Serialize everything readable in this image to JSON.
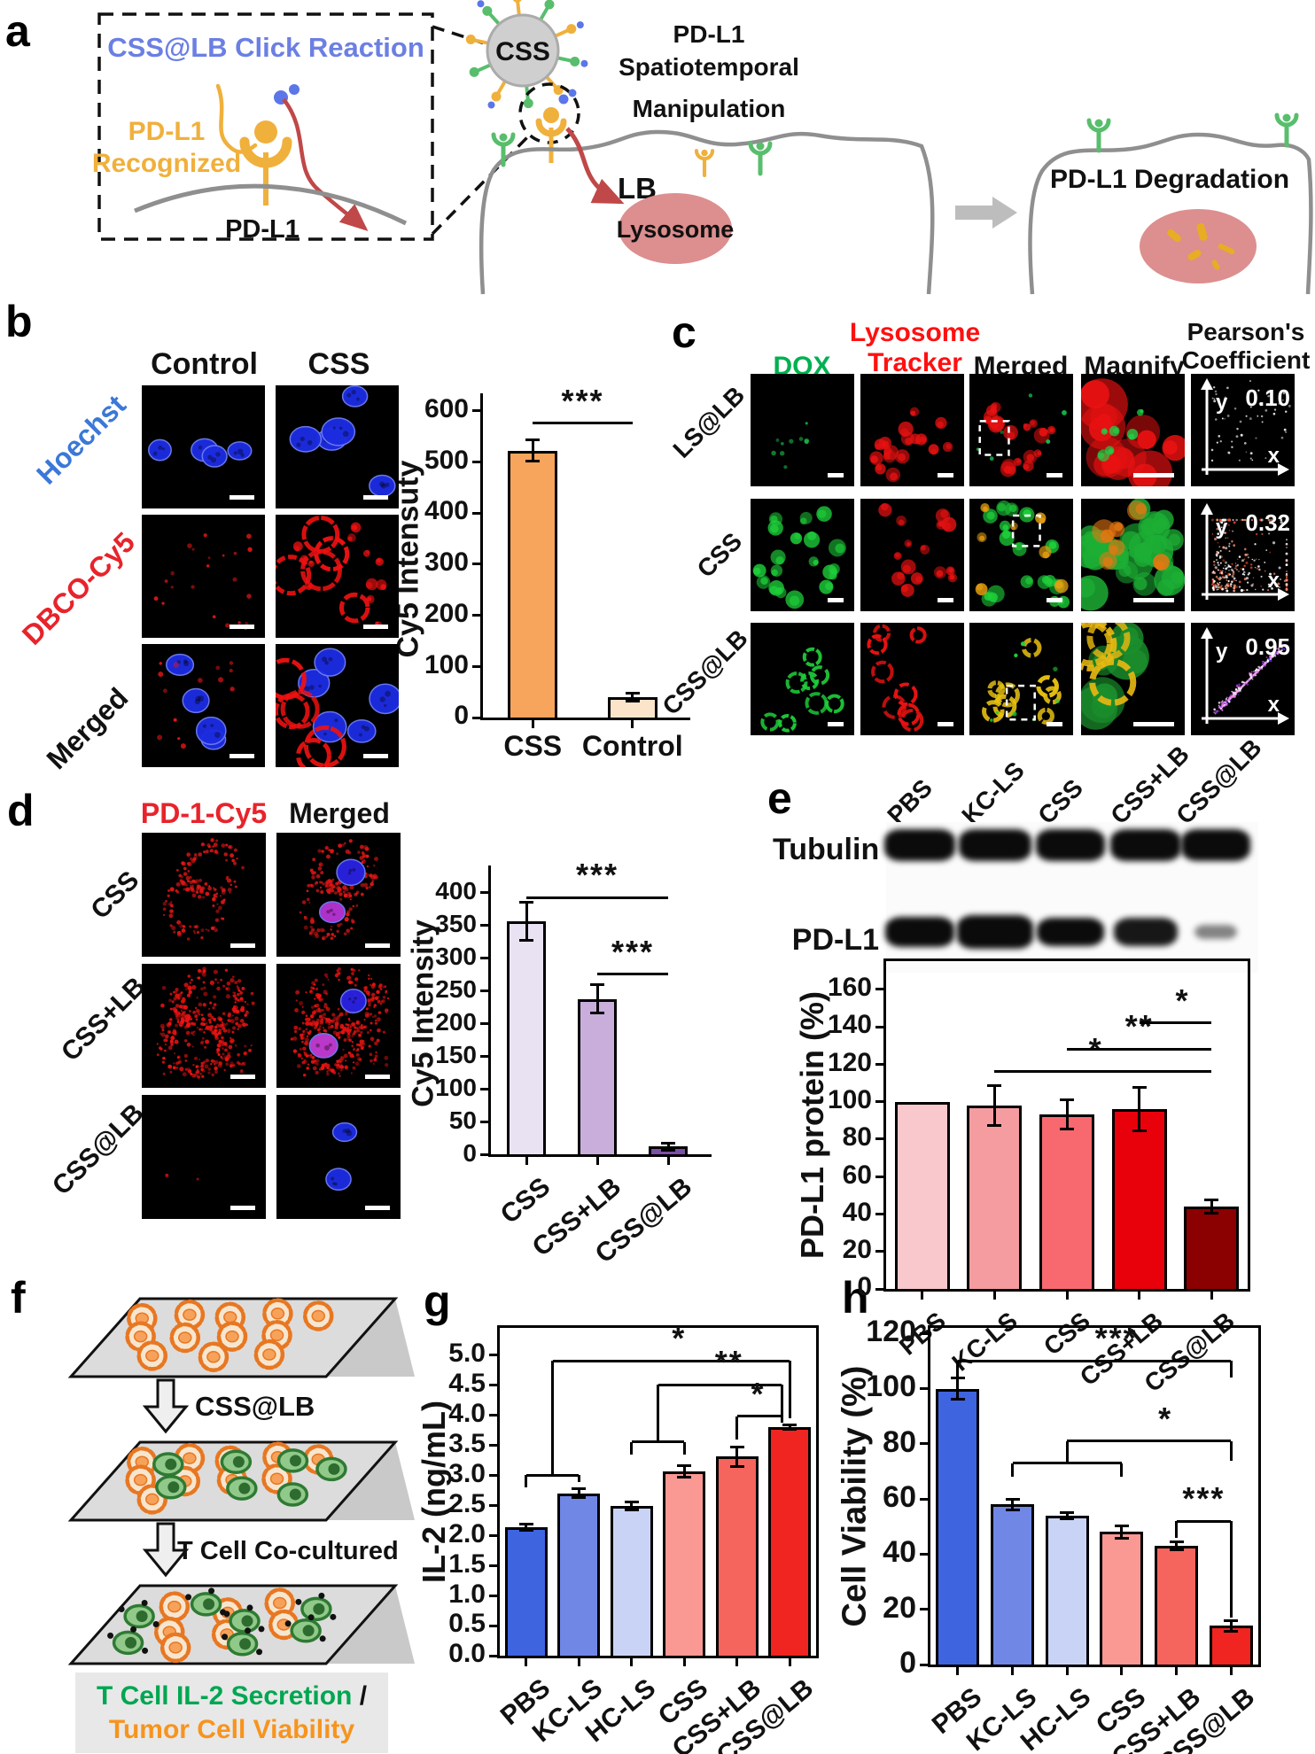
{
  "figure": {
    "panel_a": {
      "label": "a",
      "click_reaction": "CSS@LB Click Reaction",
      "recognized_line1": "PD-L1",
      "recognized_line2": "Recognized",
      "membrane_protein": "PD-L1",
      "nanoparticle": "CSS",
      "manip_line1": "PD-L1",
      "manip_line2": "Spatiotemporal",
      "manip_line3": "Manipulation",
      "lb": "LB",
      "lysosome": "Lysosome",
      "degradation": "PD-L1 Degradation"
    },
    "panel_b": {
      "label": "b",
      "columns": [
        "Control",
        "CSS"
      ],
      "rows": [
        "Hoechst",
        "DBCO-Cy5",
        "Merged"
      ]
    },
    "panel_c": {
      "label": "c",
      "col_dox": "DOX",
      "col_lyso_1": "Lysosome",
      "col_lyso_2": "Tracker",
      "col_merged": "Merged",
      "col_magnify": "Magnify",
      "col_pearson_1": "Pearson's",
      "col_pearson_2": "Coefficient",
      "rows": [
        "LS@LB",
        "CSS",
        "CSS@LB"
      ],
      "pearson_values": [
        "0.10",
        "0.32",
        "0.95"
      ],
      "axis_x": "x",
      "axis_y": "y"
    },
    "panel_d": {
      "label": "d",
      "columns": [
        "PD-1-Cy5",
        "Merged"
      ],
      "rows": [
        "CSS",
        "CSS+LB",
        "CSS@LB"
      ]
    },
    "panel_e": {
      "label": "e",
      "blot_rows": [
        "Tubulin",
        "PD-L1"
      ],
      "lanes": [
        "PBS",
        "KC-LS",
        "CSS",
        "CSS+LB",
        "CSS@LB"
      ]
    },
    "panel_f": {
      "label": "f",
      "step1_label": "CSS@LB",
      "step2_label": "T Cell Co-cultured",
      "caption_green": "T Cell IL-2 Secretion",
      "caption_sep": " /",
      "caption_orange": "Tumor Cell Viability"
    },
    "panel_g": {
      "label": "g"
    },
    "panel_h": {
      "label": "h"
    }
  },
  "chart_data": [
    {
      "id": "chart-b",
      "type": "bar",
      "title": "",
      "xlabel": "",
      "ylabel": "Cy5 Intensuty",
      "categories": [
        "CSS",
        "Control"
      ],
      "values": [
        522,
        40
      ],
      "errors": [
        22,
        8
      ],
      "colors": [
        "#F7A55C",
        "#FBE4C9"
      ],
      "ylim": [
        0,
        620
      ],
      "yticks": [
        0,
        100,
        200,
        300,
        400,
        500,
        600
      ],
      "ytick_labels": [
        "0",
        "100",
        "200",
        "300",
        "400",
        "500",
        "600"
      ],
      "significance": [
        {
          "t": "h",
          "x1": 0,
          "x2": 1,
          "y": 575
        },
        {
          "t": "txt",
          "x": 0.5,
          "y": 575,
          "s": "***"
        }
      ]
    },
    {
      "id": "chart-d",
      "type": "bar",
      "title": "",
      "xlabel": "",
      "ylabel": "Cy5 Intensity",
      "categories": [
        "CSS",
        "CSS+LB",
        "CSS@LB"
      ],
      "values": [
        356,
        237,
        12
      ],
      "errors": [
        30,
        22,
        6
      ],
      "colors": [
        "#E9E2F3",
        "#C9AEDC",
        "#7B50A5"
      ],
      "ylim": [
        0,
        430
      ],
      "yticks": [
        0,
        50,
        100,
        150,
        200,
        250,
        300,
        350,
        400
      ],
      "ytick_labels": [
        "0",
        "50",
        "100",
        "150",
        "200",
        "250",
        "300",
        "350",
        "400"
      ],
      "significance": [
        {
          "t": "h",
          "x1": 0,
          "x2": 2,
          "y": 392
        },
        {
          "t": "txt",
          "x": 1,
          "y": 392,
          "s": "***"
        },
        {
          "t": "h",
          "x1": 1,
          "x2": 2,
          "y": 275
        },
        {
          "t": "txt",
          "x": 1.5,
          "y": 275,
          "s": "***"
        }
      ]
    },
    {
      "id": "chart-e",
      "type": "bar",
      "title": "",
      "xlabel": "",
      "ylabel": "PD-L1 protein (%)",
      "categories": [
        "PBS",
        "KC-LS",
        "CSS",
        "CSS+LB",
        "CSS@LB"
      ],
      "values": [
        100,
        98,
        93,
        96,
        44
      ],
      "errors": [
        0,
        11,
        8,
        12,
        4
      ],
      "colors": [
        "#F8C8CC",
        "#F59CA1",
        "#F8696F",
        "#E8000B",
        "#8B0000"
      ],
      "ylim": [
        0,
        175
      ],
      "yticks": [
        0,
        20,
        40,
        60,
        80,
        100,
        120,
        140,
        160
      ],
      "ytick_labels": [
        "0",
        "20",
        "40",
        "60",
        "80",
        "100",
        "120",
        "140",
        "160"
      ],
      "significance": [
        {
          "t": "h",
          "x1": 1,
          "x2": 4,
          "y": 116
        },
        {
          "t": "txt",
          "x": 2.4,
          "y": 116,
          "s": "*"
        },
        {
          "t": "h",
          "x1": 2,
          "x2": 4,
          "y": 128
        },
        {
          "t": "txt",
          "x": 3.0,
          "y": 128,
          "s": "**"
        },
        {
          "t": "h",
          "x1": 3,
          "x2": 4,
          "y": 142
        },
        {
          "t": "txt",
          "x": 3.6,
          "y": 142,
          "s": "*"
        }
      ]
    },
    {
      "id": "chart-g",
      "type": "bar",
      "title": "",
      "xlabel": "",
      "ylabel": "IL-2 (ng/mL)",
      "categories": [
        "PBS",
        "KC-LS",
        "HC-LS",
        "CSS",
        "CSS+LB",
        "CSS@LB"
      ],
      "values": [
        2.13,
        2.7,
        2.49,
        3.06,
        3.31,
        3.8
      ],
      "errors": [
        0.06,
        0.08,
        0.08,
        0.1,
        0.17,
        0.04
      ],
      "colors": [
        "#3E64E0",
        "#7187E6",
        "#C9D3F6",
        "#FA9894",
        "#F5655E",
        "#F02420"
      ],
      "ylim": [
        0,
        5.45
      ],
      "yticks": [
        0,
        0.5,
        1.0,
        1.5,
        2.0,
        2.5,
        3.0,
        3.5,
        4.0,
        4.5,
        5.0
      ],
      "ytick_labels": [
        "0.0",
        "0.5",
        "1.0",
        "1.5",
        "2.0",
        "2.5",
        "3.0",
        "3.5",
        "4.0",
        "4.5",
        "5.0"
      ],
      "significance": [
        {
          "t": "v",
          "x": 0,
          "y1": 2.8,
          "y2": 3.0
        },
        {
          "t": "v",
          "x": 1,
          "y1": 2.88,
          "y2": 3.0
        },
        {
          "t": "h",
          "x1": 0,
          "x2": 1,
          "y": 3.0
        },
        {
          "t": "v",
          "x": 0.5,
          "y1": 3.0,
          "y2": 4.9
        },
        {
          "t": "h",
          "x1": 0.5,
          "x2": 5,
          "y": 4.9
        },
        {
          "t": "v",
          "x": 5,
          "y1": 3.95,
          "y2": 4.9
        },
        {
          "t": "txt",
          "x": 2.9,
          "y": 4.9,
          "s": "*"
        },
        {
          "t": "v",
          "x": 2,
          "y1": 3.35,
          "y2": 3.55
        },
        {
          "t": "v",
          "x": 3,
          "y1": 3.35,
          "y2": 3.55
        },
        {
          "t": "h",
          "x1": 2,
          "x2": 3,
          "y": 3.55
        },
        {
          "t": "v",
          "x": 2.5,
          "y1": 3.55,
          "y2": 4.5
        },
        {
          "t": "h",
          "x1": 2.5,
          "x2": 4.85,
          "y": 4.5
        },
        {
          "t": "v",
          "x": 4.85,
          "y1": 3.95,
          "y2": 4.5
        },
        {
          "t": "txt",
          "x": 3.85,
          "y": 4.5,
          "s": "**"
        },
        {
          "t": "h",
          "x1": 4,
          "x2": 4.85,
          "y": 3.98
        },
        {
          "t": "v",
          "x": 4,
          "y1": 3.6,
          "y2": 3.98
        },
        {
          "t": "v",
          "x": 4.85,
          "y1": 3.88,
          "y2": 3.98
        },
        {
          "t": "txt",
          "x": 4.4,
          "y": 3.98,
          "s": "*"
        }
      ]
    },
    {
      "id": "chart-h",
      "type": "bar",
      "title": "",
      "xlabel": "",
      "ylabel": "Cell Viability (%)",
      "categories": [
        "PBS",
        "KC-LS",
        "HC-LS",
        "CSS",
        "CSS+LB",
        "CSS@LB"
      ],
      "values": [
        100,
        58,
        54,
        48,
        43,
        14
      ],
      "errors": [
        4,
        2,
        1.2,
        2.5,
        1.5,
        2
      ],
      "colors": [
        "#3E64E0",
        "#7187E6",
        "#C9D3F6",
        "#FA9894",
        "#F5655E",
        "#F02420"
      ],
      "ylim": [
        0,
        122
      ],
      "yticks": [
        0,
        20,
        40,
        60,
        80,
        100,
        120
      ],
      "ytick_labels": [
        "0",
        "20",
        "40",
        "60",
        "80",
        "100",
        "120"
      ],
      "significance": [
        {
          "t": "h",
          "x1": 0,
          "x2": 5,
          "y": 110
        },
        {
          "t": "v",
          "x": 0,
          "y1": 104,
          "y2": 110
        },
        {
          "t": "v",
          "x": 5,
          "y1": 104,
          "y2": 110
        },
        {
          "t": "txt",
          "x": 2.9,
          "y": 110,
          "s": "***"
        },
        {
          "t": "v",
          "x": 1,
          "y1": 68,
          "y2": 73
        },
        {
          "t": "v",
          "x": 3,
          "y1": 68,
          "y2": 73
        },
        {
          "t": "h",
          "x1": 1,
          "x2": 3,
          "y": 73
        },
        {
          "t": "v",
          "x": 2,
          "y1": 73,
          "y2": 81
        },
        {
          "t": "h",
          "x1": 2,
          "x2": 5,
          "y": 81
        },
        {
          "t": "v",
          "x": 5,
          "y1": 74,
          "y2": 81
        },
        {
          "t": "txt",
          "x": 3.8,
          "y": 81,
          "s": "*"
        },
        {
          "t": "h",
          "x1": 4,
          "x2": 5,
          "y": 52
        },
        {
          "t": "v",
          "x": 4,
          "y1": 46,
          "y2": 52
        },
        {
          "t": "v",
          "x": 5,
          "y1": 17,
          "y2": 52
        },
        {
          "t": "txt",
          "x": 4.5,
          "y": 52,
          "s": "***"
        }
      ]
    }
  ]
}
